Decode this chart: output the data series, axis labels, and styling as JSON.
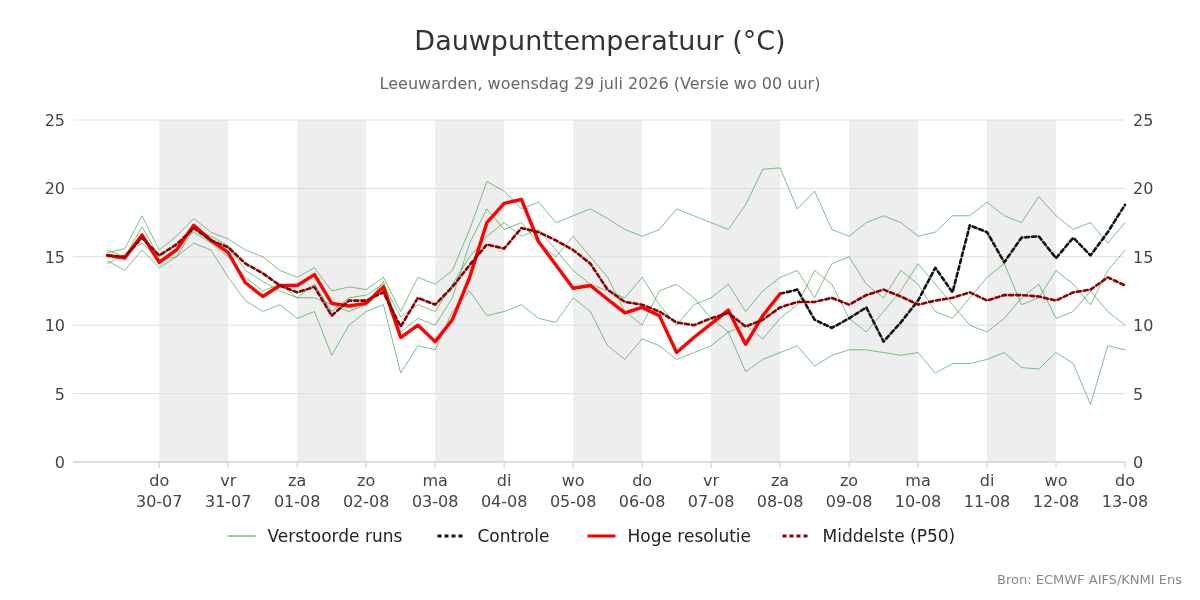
{
  "chart_data": {
    "type": "line",
    "title": "Dauwpunttemperatuur (°C)",
    "subtitle": "Leeuwarden, woensdag 29 juli 2026 (Versie wo 00 uur)",
    "x": [
      "2026-07-29T06:00",
      "2026-07-29T12:00",
      "2026-07-29T18:00",
      "2026-07-30T00:00",
      "2026-07-30T06:00",
      "2026-07-30T12:00",
      "2026-07-30T18:00",
      "2026-07-31T00:00",
      "2026-07-31T06:00",
      "2026-07-31T12:00",
      "2026-07-31T18:00",
      "2026-08-01T00:00",
      "2026-08-01T06:00",
      "2026-08-01T12:00",
      "2026-08-01T18:00",
      "2026-08-02T00:00",
      "2026-08-02T06:00",
      "2026-08-02T12:00",
      "2026-08-02T18:00",
      "2026-08-03T00:00",
      "2026-08-03T06:00",
      "2026-08-03T12:00",
      "2026-08-03T18:00",
      "2026-08-04T00:00",
      "2026-08-04T06:00",
      "2026-08-04T12:00",
      "2026-08-04T18:00",
      "2026-08-05T00:00",
      "2026-08-05T06:00",
      "2026-08-05T12:00",
      "2026-08-05T18:00",
      "2026-08-06T00:00",
      "2026-08-06T06:00",
      "2026-08-06T12:00",
      "2026-08-06T18:00",
      "2026-08-07T00:00",
      "2026-08-07T06:00",
      "2026-08-07T12:00",
      "2026-08-07T18:00",
      "2026-08-08T00:00",
      "2026-08-08T06:00",
      "2026-08-08T12:00",
      "2026-08-08T18:00",
      "2026-08-09T00:00",
      "2026-08-09T06:00",
      "2026-08-09T12:00",
      "2026-08-09T18:00",
      "2026-08-10T00:00",
      "2026-08-10T06:00",
      "2026-08-10T12:00",
      "2026-08-10T18:00",
      "2026-08-11T00:00",
      "2026-08-11T06:00",
      "2026-08-11T12:00",
      "2026-08-11T18:00",
      "2026-08-12T00:00",
      "2026-08-12T06:00",
      "2026-08-12T12:00",
      "2026-08-12T18:00",
      "2026-08-13T00:00"
    ],
    "series": [
      {
        "name": "Verstoorde runs",
        "color": "#2e9e3e",
        "line_style": "solid",
        "values": [
          15.3,
          15.6,
          18.0,
          15.5,
          16.5,
          17.8,
          16.8,
          16.3,
          15.5,
          15.0,
          14.0,
          13.5,
          14.2,
          12.5,
          12.8,
          12.6,
          13.5,
          11.0,
          13.5,
          13.0,
          14.0,
          17.0,
          20.5,
          19.8,
          18.5,
          19.0,
          17.5,
          18.0,
          18.5,
          17.8,
          17.0,
          16.5,
          17.0,
          18.5,
          18.0,
          17.5,
          17.0,
          18.8,
          21.4,
          21.5,
          18.5,
          19.8,
          17.0,
          16.5,
          17.5,
          18.0,
          17.5,
          16.5,
          16.8,
          18.0,
          18.0,
          19.0,
          18.0,
          17.5,
          19.4,
          18.0,
          17.0,
          17.5,
          16.0,
          17.5
        ]
      },
      {
        "color": "#2e9e3e",
        "line_style": "solid",
        "values": [
          14.7,
          14.0,
          15.5,
          14.2,
          15.0,
          16.0,
          15.5,
          13.5,
          11.8,
          11.0,
          11.5,
          10.5,
          11.0,
          7.8,
          10.0,
          11.0,
          11.5,
          6.5,
          8.5,
          8.2,
          11.0,
          12.5,
          10.7,
          11.0,
          11.5,
          10.5,
          10.2,
          12.0,
          11.0,
          8.5,
          7.5,
          9.0,
          8.5,
          7.5,
          8.0,
          8.5,
          9.5,
          6.6,
          7.5,
          8.0,
          8.5,
          7.0,
          7.8,
          8.2,
          8.2,
          8.0,
          7.8,
          8.0,
          6.5,
          7.2,
          7.2,
          7.5,
          8.0,
          6.9,
          6.8,
          8.0,
          7.2,
          4.2,
          8.5,
          8.2
        ]
      },
      {
        "color": "#2e9e3e",
        "line_style": "solid",
        "values": [
          15.5,
          15.0,
          17.2,
          15.0,
          16.0,
          16.8,
          16.0,
          15.0,
          13.5,
          12.5,
          13.0,
          12.0,
          13.0,
          11.0,
          12.0,
          12.2,
          13.0,
          10.6,
          11.5,
          11.0,
          13.0,
          15.0,
          16.5,
          17.5,
          16.5,
          17.0,
          15.5,
          14.0,
          13.0,
          12.5,
          12.0,
          13.5,
          11.5,
          10.0,
          11.5,
          12.0,
          13.0,
          11.0,
          12.5,
          13.5,
          14.0,
          12.0,
          14.5,
          15.0,
          13.0,
          12.0,
          14.0,
          13.0,
          11.0,
          10.5,
          12.0,
          13.5,
          14.5,
          11.5,
          12.0,
          14.0,
          13.0,
          11.5,
          14.0,
          15.5
        ]
      },
      {
        "color": "#2e9e3e",
        "line_style": "solid",
        "values": [
          14.5,
          15.2,
          16.0,
          14.8,
          15.0,
          17.0,
          16.5,
          15.8,
          14.0,
          13.2,
          12.5,
          12.0,
          12.0,
          11.5,
          11.0,
          11.5,
          13.2,
          9.5,
          10.5,
          10.0,
          12.0,
          16.0,
          18.5,
          17.0,
          17.5,
          16.0,
          15.0,
          16.5,
          15.0,
          13.5,
          11.0,
          10.0,
          12.5,
          13.0,
          12.0,
          10.5,
          9.5,
          10.0,
          9.0,
          10.5,
          11.5,
          14.0,
          13.0,
          10.5,
          9.5,
          11.0,
          12.5,
          14.5,
          13.0,
          11.5,
          10.0,
          9.5,
          10.5,
          12.0,
          13.0,
          10.5,
          11.0,
          12.5,
          11.0,
          10.0
        ]
      },
      {
        "name": "Controle",
        "color": "#111111",
        "line_style": "dashed",
        "values": [
          null,
          null,
          null,
          null,
          null,
          null,
          null,
          null,
          null,
          null,
          null,
          null,
          null,
          null,
          null,
          null,
          null,
          null,
          null,
          null,
          null,
          null,
          null,
          null,
          null,
          null,
          null,
          null,
          null,
          null,
          null,
          null,
          null,
          null,
          null,
          null,
          null,
          null,
          null,
          12.3,
          12.6,
          10.4,
          9.8,
          10.5,
          11.3,
          8.8,
          10.2,
          11.8,
          14.2,
          12.4,
          17.3,
          16.8,
          14.6,
          16.4,
          16.5,
          14.9,
          16.4,
          15.1,
          16.8,
          18.8
        ]
      },
      {
        "name": "Hoge resolutie",
        "color": "#ff0000",
        "line_style": "solid",
        "values": [
          15.1,
          14.9,
          16.6,
          14.6,
          15.5,
          17.3,
          16.2,
          15.3,
          13.1,
          12.1,
          12.9,
          12.9,
          13.7,
          11.6,
          11.4,
          11.6,
          12.8,
          9.1,
          10.0,
          8.8,
          10.4,
          13.5,
          17.5,
          18.9,
          19.2,
          16.1,
          14.4,
          12.7,
          12.9,
          11.9,
          10.9,
          11.3,
          10.7,
          8.0,
          9.1,
          10.1,
          11.1,
          8.6,
          10.7,
          12.3,
          null,
          null,
          null,
          null,
          null,
          null,
          null,
          null,
          null,
          null,
          null,
          null,
          null,
          null,
          null,
          null,
          null,
          null,
          null,
          null
        ]
      },
      {
        "name": "Middelste (P50)",
        "color": "#8b0000",
        "line_style": "dashed",
        "values": [
          15.1,
          15.0,
          16.4,
          15.1,
          15.9,
          17.1,
          16.2,
          15.7,
          14.5,
          13.8,
          12.9,
          12.4,
          12.8,
          10.7,
          11.8,
          11.8,
          12.4,
          9.9,
          12.0,
          11.5,
          12.8,
          14.4,
          15.9,
          15.6,
          17.1,
          16.8,
          16.2,
          15.5,
          14.5,
          12.6,
          11.7,
          11.5,
          11.0,
          10.2,
          10.0,
          10.5,
          10.9,
          9.9,
          10.4,
          11.3,
          11.7,
          11.7,
          12.0,
          11.5,
          12.2,
          12.6,
          12.1,
          11.5,
          11.8,
          12.0,
          12.4,
          11.8,
          12.2,
          12.2,
          12.1,
          11.8,
          12.4,
          12.6,
          13.5,
          12.9
        ]
      }
    ],
    "xlim": [
      "2026-07-28T18:00",
      "2026-08-13T00:00"
    ],
    "xticks": [
      {
        "value": "2026-07-30",
        "label": "do\n30-07"
      },
      {
        "value": "2026-07-31",
        "label": "vr\n31-07"
      },
      {
        "value": "2026-08-01",
        "label": "za\n01-08"
      },
      {
        "value": "2026-08-02",
        "label": "zo\n02-08"
      },
      {
        "value": "2026-08-03",
        "label": "ma\n03-08"
      },
      {
        "value": "2026-08-04",
        "label": "di\n04-08"
      },
      {
        "value": "2026-08-05",
        "label": "wo\n05-08"
      },
      {
        "value": "2026-08-06",
        "label": "do\n06-08"
      },
      {
        "value": "2026-08-07",
        "label": "vr\n07-08"
      },
      {
        "value": "2026-08-08",
        "label": "za\n08-08"
      },
      {
        "value": "2026-08-09",
        "label": "zo\n09-08"
      },
      {
        "value": "2026-08-10",
        "label": "ma\n10-08"
      },
      {
        "value": "2026-08-11",
        "label": "di\n11-08"
      },
      {
        "value": "2026-08-12",
        "label": "wo\n12-08"
      },
      {
        "value": "2026-08-13",
        "label": "do\n13-08"
      }
    ],
    "ylim": [
      0,
      25
    ],
    "yticks": [
      0,
      5,
      10,
      15,
      20,
      25
    ],
    "y2lim": [
      0,
      25
    ],
    "y2ticks": [
      0,
      5,
      10,
      15,
      20,
      25
    ],
    "bands": [
      {
        "axis": "x",
        "from": "2026-07-30",
        "to": "2026-07-31",
        "color": "#eeeeee"
      },
      {
        "axis": "x",
        "from": "2026-08-01",
        "to": "2026-08-02",
        "color": "#eeeeee"
      },
      {
        "axis": "x",
        "from": "2026-08-03",
        "to": "2026-08-04",
        "color": "#eeeeee"
      },
      {
        "axis": "x",
        "from": "2026-08-05",
        "to": "2026-08-06",
        "color": "#eeeeee"
      },
      {
        "axis": "x",
        "from": "2026-08-07",
        "to": "2026-08-08",
        "color": "#eeeeee"
      },
      {
        "axis": "x",
        "from": "2026-08-09",
        "to": "2026-08-10",
        "color": "#eeeeee"
      },
      {
        "axis": "x",
        "from": "2026-08-11",
        "to": "2026-08-12",
        "color": "#eeeeee"
      }
    ],
    "grid": "y",
    "legend": "bottom",
    "marker": "none",
    "annotations": [
      "Bron: ECMWF AIFS/KNMI Ens"
    ]
  }
}
